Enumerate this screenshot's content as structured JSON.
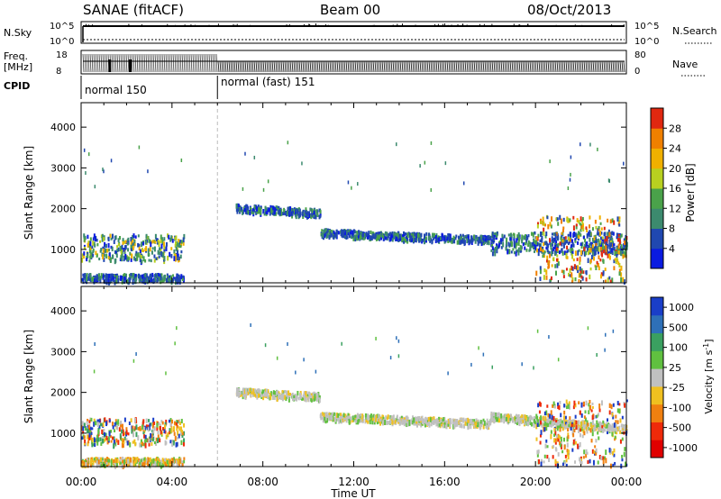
{
  "header": {
    "station": "SANAE (fitACF)",
    "beam": "Beam 00",
    "date": "08/Oct/2013"
  },
  "panels": {
    "nsky": {
      "label": "N.Sky",
      "tick_top": "10^5",
      "tick_bottom": "10^0",
      "right_label": "N.Search",
      "right_tick_top": "10^5",
      "right_tick_bottom": "10^0"
    },
    "freq": {
      "label_line1": "Freq.",
      "label_line2": "[MHz]",
      "tick_top": "18",
      "tick_bottom": "8",
      "right_label": "Nave",
      "right_tick_top": "80",
      "right_tick_bottom": "0"
    },
    "cpid": {
      "label": "CPID",
      "modes": [
        {
          "text": "normal 150",
          "start_hour": 0,
          "end_hour": 6
        },
        {
          "text": "normal (fast) 151",
          "start_hour": 6,
          "end_hour": 24
        }
      ]
    }
  },
  "power_colorbar": {
    "label": "Power [dB]",
    "ticks": [
      "4",
      "8",
      "12",
      "16",
      "20",
      "24",
      "28"
    ],
    "colors": [
      "#0a1be0",
      "#2048b0",
      "#3c8a6e",
      "#4aa24a",
      "#b8d020",
      "#f0b000",
      "#f08000",
      "#e02810"
    ]
  },
  "velocity_colorbar": {
    "label_main": "Velocity",
    "label_units": "[m s",
    "label_exp": "-1",
    "label_close": "]",
    "ticks": [
      "1000",
      "500",
      "100",
      "25",
      "-25",
      "-100",
      "-500",
      "-1000"
    ],
    "colors": [
      "#1a3ec8",
      "#2e70b8",
      "#3aa060",
      "#60c040",
      "#c0c0c0",
      "#f0c020",
      "#f08010",
      "#ee2a0a",
      "#e00000"
    ]
  },
  "chart_data": [
    {
      "type": "heatmap",
      "title": "Power",
      "ylabel": "Slant Range [km]",
      "xlabel": "",
      "x_range_hours": [
        0,
        24
      ],
      "ylim": [
        180,
        4600
      ],
      "yticks": [
        "1000",
        "2000",
        "3000",
        "4000"
      ],
      "vline_hour": 6,
      "echo_regions": [
        {
          "x": [
            0.0,
            4.5
          ],
          "y": [
            700,
            1350
          ],
          "level": "mixed"
        },
        {
          "x": [
            0.0,
            4.5
          ],
          "y": [
            200,
            380
          ],
          "level": "low"
        },
        {
          "x": [
            6.8,
            10.5
          ],
          "y": [
            1800,
            2000
          ],
          "level": "low"
        },
        {
          "x": [
            10.5,
            18.0
          ],
          "y": [
            1100,
            1400
          ],
          "level": "low"
        },
        {
          "x": [
            18.0,
            24.0
          ],
          "y": [
            900,
            1400
          ],
          "level": "low"
        },
        {
          "x": [
            20.0,
            24.0
          ],
          "y": [
            200,
            1800
          ],
          "level": "high"
        }
      ]
    },
    {
      "type": "heatmap",
      "title": "Velocity",
      "ylabel": "Slant Range [km]",
      "xlabel": "Time UT",
      "x_range_hours": [
        0,
        24
      ],
      "x_ticks": [
        "00:00",
        "04:00",
        "08:00",
        "12:00",
        "16:00",
        "20:00",
        "00:00"
      ],
      "ylim": [
        180,
        4600
      ],
      "yticks": [
        "1000",
        "2000",
        "3000",
        "4000"
      ],
      "vline_hour": 6,
      "echo_regions": [
        {
          "x": [
            0.0,
            4.5
          ],
          "y": [
            700,
            1350
          ],
          "level": "mixed"
        },
        {
          "x": [
            0.0,
            4.5
          ],
          "y": [
            200,
            380
          ],
          "level": "low-vel"
        },
        {
          "x": [
            6.8,
            10.5
          ],
          "y": [
            1800,
            2000
          ],
          "level": "ground"
        },
        {
          "x": [
            10.5,
            18.0
          ],
          "y": [
            1100,
            1400
          ],
          "level": "ground"
        },
        {
          "x": [
            18.0,
            24.0
          ],
          "y": [
            900,
            1400
          ],
          "level": "ground"
        },
        {
          "x": [
            20.0,
            24.0
          ],
          "y": [
            200,
            1800
          ],
          "level": "negative"
        }
      ]
    }
  ]
}
